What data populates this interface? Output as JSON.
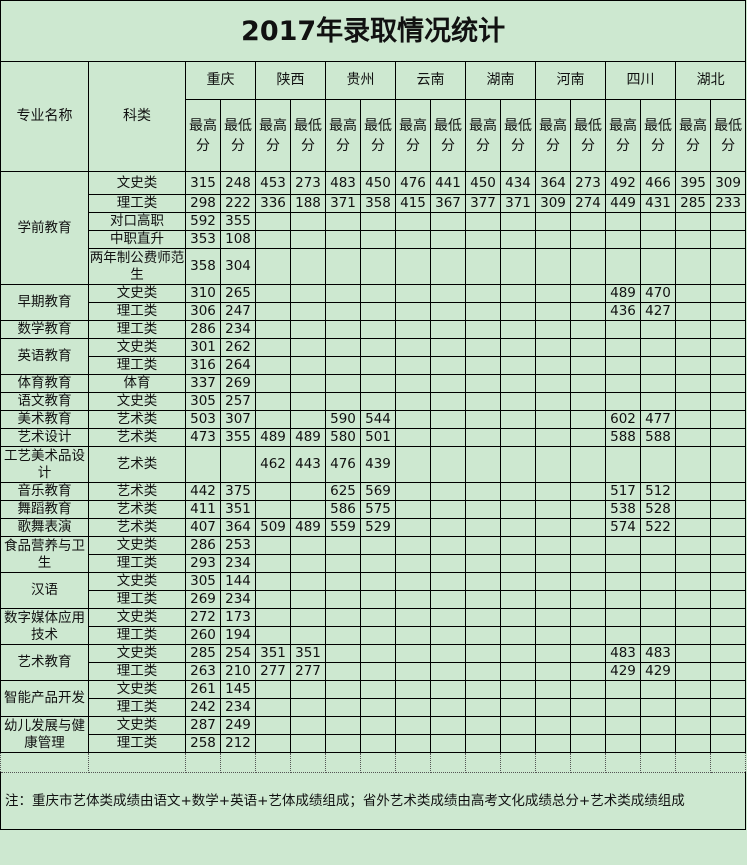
{
  "title": "2017年录取情况统计",
  "headers": {
    "major": "专业名称",
    "category": "科类",
    "max": "最高分",
    "min": "最低分",
    "provinces": [
      "重庆",
      "陕西",
      "贵州",
      "云南",
      "湖南",
      "河南",
      "四川",
      "湖北"
    ]
  },
  "groups": [
    {
      "major": "学前教育",
      "rows": [
        {
          "category": "文史类",
          "scores": [
            "315",
            "248",
            "453",
            "273",
            "483",
            "450",
            "476",
            "441",
            "450",
            "434",
            "364",
            "273",
            "492",
            "466",
            "395",
            "309"
          ]
        },
        {
          "category": "理工类",
          "scores": [
            "298",
            "222",
            "336",
            "188",
            "371",
            "358",
            "415",
            "367",
            "377",
            "371",
            "309",
            "274",
            "449",
            "431",
            "285",
            "233"
          ]
        },
        {
          "category": "对口高职",
          "scores": [
            "592",
            "355",
            "",
            "",
            "",
            "",
            "",
            "",
            "",
            "",
            "",
            "",
            "",
            "",
            "",
            ""
          ]
        },
        {
          "category": "中职直升",
          "scores": [
            "353",
            "108",
            "",
            "",
            "",
            "",
            "",
            "",
            "",
            "",
            "",
            "",
            "",
            "",
            "",
            ""
          ]
        },
        {
          "category": "两年制公费师范生",
          "scores": [
            "358",
            "304",
            "",
            "",
            "",
            "",
            "",
            "",
            "",
            "",
            "",
            "",
            "",
            "",
            "",
            ""
          ],
          "tall": true
        }
      ]
    },
    {
      "major": "早期教育",
      "rows": [
        {
          "category": "文史类",
          "scores": [
            "310",
            "265",
            "",
            "",
            "",
            "",
            "",
            "",
            "",
            "",
            "",
            "",
            "489",
            "470",
            "",
            ""
          ]
        },
        {
          "category": "理工类",
          "scores": [
            "306",
            "247",
            "",
            "",
            "",
            "",
            "",
            "",
            "",
            "",
            "",
            "",
            "436",
            "427",
            "",
            ""
          ]
        }
      ]
    },
    {
      "major": "数学教育",
      "rows": [
        {
          "category": "理工类",
          "scores": [
            "286",
            "234",
            "",
            "",
            "",
            "",
            "",
            "",
            "",
            "",
            "",
            "",
            "",
            "",
            "",
            ""
          ]
        }
      ]
    },
    {
      "major": "英语教育",
      "rows": [
        {
          "category": "文史类",
          "scores": [
            "301",
            "262",
            "",
            "",
            "",
            "",
            "",
            "",
            "",
            "",
            "",
            "",
            "",
            "",
            "",
            ""
          ]
        },
        {
          "category": "理工类",
          "scores": [
            "316",
            "264",
            "",
            "",
            "",
            "",
            "",
            "",
            "",
            "",
            "",
            "",
            "",
            "",
            "",
            ""
          ]
        }
      ]
    },
    {
      "major": "体育教育",
      "rows": [
        {
          "category": "体育",
          "scores": [
            "337",
            "269",
            "",
            "",
            "",
            "",
            "",
            "",
            "",
            "",
            "",
            "",
            "",
            "",
            "",
            ""
          ]
        }
      ]
    },
    {
      "major": "语文教育",
      "rows": [
        {
          "category": "文史类",
          "scores": [
            "305",
            "257",
            "",
            "",
            "",
            "",
            "",
            "",
            "",
            "",
            "",
            "",
            "",
            "",
            "",
            ""
          ]
        }
      ]
    },
    {
      "major": "美术教育",
      "rows": [
        {
          "category": "艺术类",
          "scores": [
            "503",
            "307",
            "",
            "",
            "590",
            "544",
            "",
            "",
            "",
            "",
            "",
            "",
            "602",
            "477",
            "",
            ""
          ]
        }
      ]
    },
    {
      "major": "艺术设计",
      "rows": [
        {
          "category": "艺术类",
          "scores": [
            "473",
            "355",
            "489",
            "489",
            "580",
            "501",
            "",
            "",
            "",
            "",
            "",
            "",
            "588",
            "588",
            "",
            ""
          ]
        }
      ]
    },
    {
      "major": "工艺美术品设计",
      "rows": [
        {
          "category": "艺术类",
          "scores": [
            "",
            "",
            "462",
            "443",
            "476",
            "439",
            "",
            "",
            "",
            "",
            "",
            "",
            "",
            "",
            "",
            ""
          ],
          "tall": true
        }
      ]
    },
    {
      "major": "音乐教育",
      "rows": [
        {
          "category": "艺术类",
          "scores": [
            "442",
            "375",
            "",
            "",
            "625",
            "569",
            "",
            "",
            "",
            "",
            "",
            "",
            "517",
            "512",
            "",
            ""
          ]
        }
      ]
    },
    {
      "major": "舞蹈教育",
      "rows": [
        {
          "category": "艺术类",
          "scores": [
            "411",
            "351",
            "",
            "",
            "586",
            "575",
            "",
            "",
            "",
            "",
            "",
            "",
            "538",
            "528",
            "",
            ""
          ]
        }
      ]
    },
    {
      "major": "歌舞表演",
      "rows": [
        {
          "category": "艺术类",
          "scores": [
            "407",
            "364",
            "509",
            "489",
            "559",
            "529",
            "",
            "",
            "",
            "",
            "",
            "",
            "574",
            "522",
            "",
            ""
          ]
        }
      ]
    },
    {
      "major": "食品营养与卫生",
      "rows": [
        {
          "category": "文史类",
          "scores": [
            "286",
            "253",
            "",
            "",
            "",
            "",
            "",
            "",
            "",
            "",
            "",
            "",
            "",
            "",
            "",
            ""
          ]
        },
        {
          "category": "理工类",
          "scores": [
            "293",
            "234",
            "",
            "",
            "",
            "",
            "",
            "",
            "",
            "",
            "",
            "",
            "",
            "",
            "",
            ""
          ]
        }
      ]
    },
    {
      "major": "汉语",
      "rows": [
        {
          "category": "文史类",
          "scores": [
            "305",
            "144",
            "",
            "",
            "",
            "",
            "",
            "",
            "",
            "",
            "",
            "",
            "",
            "",
            "",
            ""
          ]
        },
        {
          "category": "理工类",
          "scores": [
            "269",
            "234",
            "",
            "",
            "",
            "",
            "",
            "",
            "",
            "",
            "",
            "",
            "",
            "",
            "",
            ""
          ]
        }
      ]
    },
    {
      "major": "数字媒体应用技术",
      "rows": [
        {
          "category": "文史类",
          "scores": [
            "272",
            "173",
            "",
            "",
            "",
            "",
            "",
            "",
            "",
            "",
            "",
            "",
            "",
            "",
            "",
            ""
          ]
        },
        {
          "category": "理工类",
          "scores": [
            "260",
            "194",
            "",
            "",
            "",
            "",
            "",
            "",
            "",
            "",
            "",
            "",
            "",
            "",
            "",
            ""
          ]
        }
      ]
    },
    {
      "major": "艺术教育",
      "rows": [
        {
          "category": "文史类",
          "scores": [
            "285",
            "254",
            "351",
            "351",
            "",
            "",
            "",
            "",
            "",
            "",
            "",
            "",
            "483",
            "483",
            "",
            ""
          ]
        },
        {
          "category": "理工类",
          "scores": [
            "263",
            "210",
            "277",
            "277",
            "",
            "",
            "",
            "",
            "",
            "",
            "",
            "",
            "429",
            "429",
            "",
            ""
          ]
        }
      ]
    },
    {
      "major": "智能产品开发",
      "rows": [
        {
          "category": "文史类",
          "scores": [
            "261",
            "145",
            "",
            "",
            "",
            "",
            "",
            "",
            "",
            "",
            "",
            "",
            "",
            "",
            "",
            ""
          ]
        },
        {
          "category": "理工类",
          "scores": [
            "242",
            "234",
            "",
            "",
            "",
            "",
            "",
            "",
            "",
            "",
            "",
            "",
            "",
            "",
            "",
            ""
          ]
        }
      ]
    },
    {
      "major": "幼儿发展与健康管理",
      "rows": [
        {
          "category": "文史类",
          "scores": [
            "287",
            "249",
            "",
            "",
            "",
            "",
            "",
            "",
            "",
            "",
            "",
            "",
            "",
            "",
            "",
            ""
          ]
        },
        {
          "category": "理工类",
          "scores": [
            "258",
            "212",
            "",
            "",
            "",
            "",
            "",
            "",
            "",
            "",
            "",
            "",
            "",
            "",
            "",
            ""
          ]
        }
      ]
    }
  ],
  "note": "注：重庆市艺体类成绩由语文+数学+英语+艺体成绩组成；省外艺术类成绩由高考文化成绩总分+艺术类成绩组成"
}
